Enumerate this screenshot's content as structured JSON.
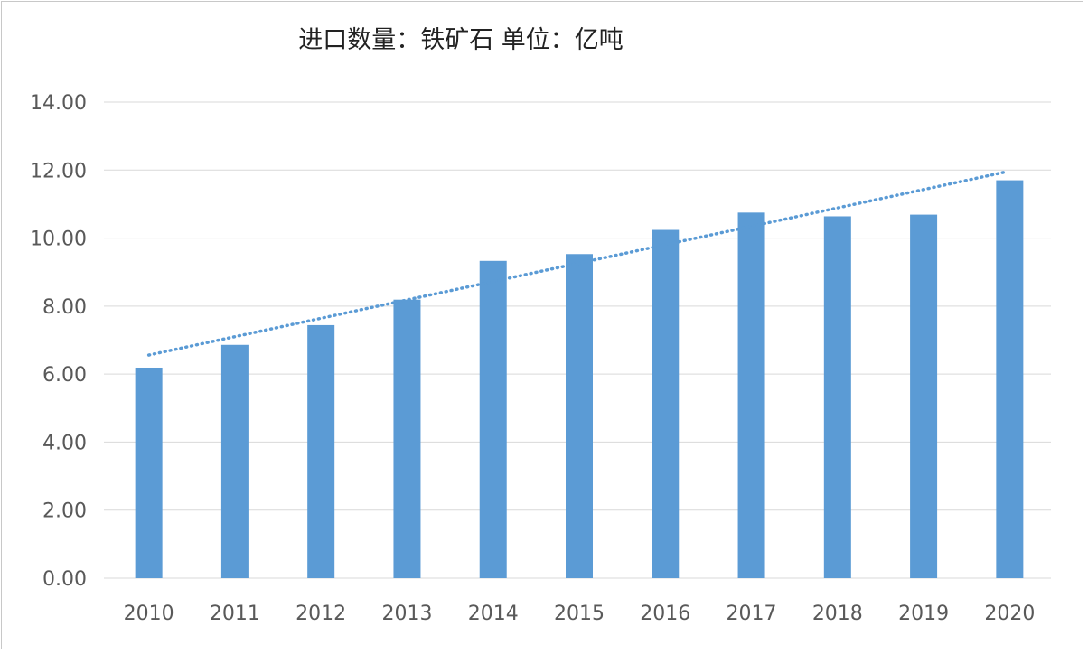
{
  "chart_data": {
    "type": "bar",
    "title": "进口数量：铁矿石 单位：亿吨",
    "xlabel": "",
    "ylabel": "",
    "categories": [
      "2010",
      "2011",
      "2012",
      "2013",
      "2014",
      "2015",
      "2016",
      "2017",
      "2018",
      "2019",
      "2020"
    ],
    "values": [
      6.19,
      6.86,
      7.44,
      8.19,
      9.33,
      9.53,
      10.24,
      10.75,
      10.64,
      10.69,
      11.7
    ],
    "ylim": [
      0,
      14
    ],
    "yticks": [
      "0.00",
      "2.00",
      "4.00",
      "6.00",
      "8.00",
      "10.00",
      "12.00",
      "14.00"
    ],
    "grid": true,
    "legend": "none",
    "trendline": {
      "type": "linear",
      "style": "dotted",
      "start": 6.56,
      "end": 11.93
    },
    "colors": {
      "bar": "#5B9BD5",
      "trendline": "#5B9BD5",
      "grid": "#d9d9d9"
    }
  }
}
